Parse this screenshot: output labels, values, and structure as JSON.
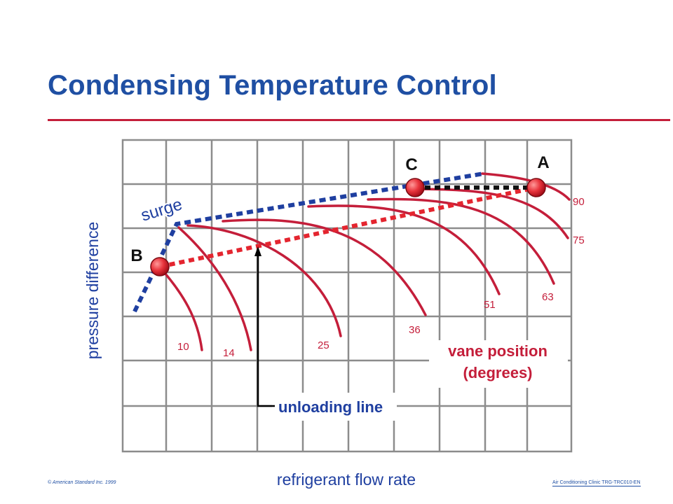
{
  "title": "Condensing Temperature Control",
  "labels": {
    "y_axis": "pressure difference",
    "x_axis": "refrigerant flow rate",
    "surge": "surge",
    "unloading_line": "unloading line",
    "vane_position_line1": "vane position",
    "vane_position_line2": "(degrees)"
  },
  "points": {
    "a": "A",
    "b": "B",
    "c": "C"
  },
  "vane_positions": [
    "10",
    "14",
    "25",
    "36",
    "51",
    "63",
    "75",
    "90"
  ],
  "footer": {
    "copyright": "© American Standard Inc. 1999",
    "course": "Air Conditioning Clinic TRG-TRC010-EN"
  },
  "colors": {
    "title": "#1f4fa3",
    "accent_red": "#c41e3a",
    "curve": "#c41e3a",
    "surge_line": "#1f3fa0",
    "grid": "#8c8c8c",
    "point_fill": "#e8343c"
  }
}
